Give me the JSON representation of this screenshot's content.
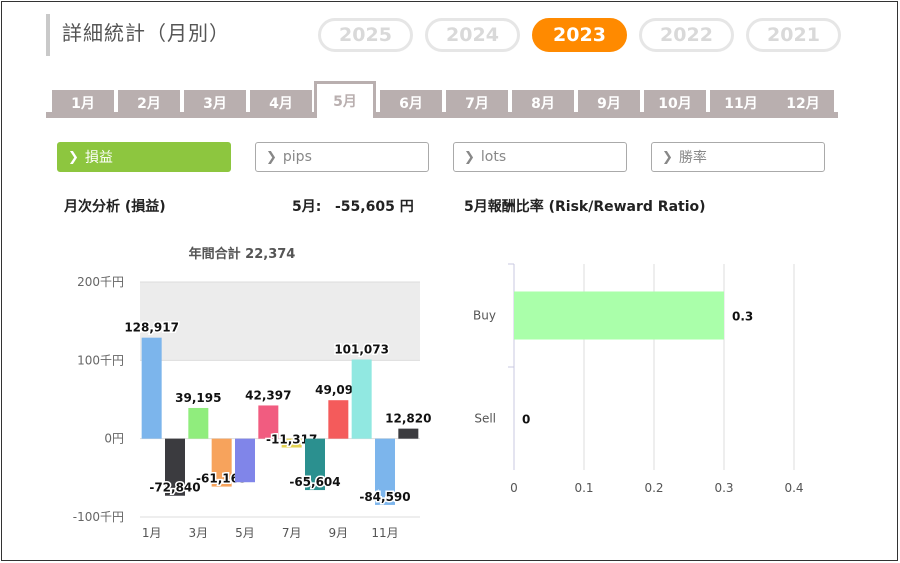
{
  "page": {
    "title": "詳細統計（月別）",
    "years": [
      {
        "label": "2025",
        "active": false
      },
      {
        "label": "2024",
        "active": false
      },
      {
        "label": "2023",
        "active": true
      },
      {
        "label": "2022",
        "active": false
      },
      {
        "label": "2021",
        "active": false
      }
    ],
    "months": [
      "1月",
      "2月",
      "3月",
      "4月",
      "5月",
      "6月",
      "7月",
      "8月",
      "9月",
      "10月",
      "11月",
      "12月"
    ],
    "active_month_index": 4,
    "metrics": [
      {
        "label": "損益",
        "active": true
      },
      {
        "label": "pips",
        "active": false
      },
      {
        "label": "lots",
        "active": false
      },
      {
        "label": "勝率",
        "active": false
      }
    ],
    "monthly_analysis_label": "月次分析 (損益)",
    "month_result_label": "5月:",
    "month_result_value": "-55,605 円",
    "ratio_title": "5月報酬比率 (Risk/Reward Ratio)",
    "annual_total_label": "年間合計 22,374",
    "colors": {
      "accent_orange": "#ff8a00",
      "accent_green": "#8dc63f",
      "tab_gray": "#b9afaf"
    }
  },
  "chart_data": [
    {
      "type": "bar",
      "title": "年間合計 22,374",
      "ylim": [
        -100000,
        200000
      ],
      "yticks": [
        {
          "value": 200000,
          "label": "200千円"
        },
        {
          "value": 100000,
          "label": "100千円"
        },
        {
          "value": 0,
          "label": "0円"
        },
        {
          "value": -100000,
          "label": "-100千円"
        }
      ],
      "xtick_labels": [
        "1月",
        "3月",
        "5月",
        "7月",
        "9月",
        "11月"
      ],
      "bars": [
        {
          "value": 128917,
          "label": "128,917",
          "color": "#7cb5ec"
        },
        {
          "value": -72840,
          "label": "-72,840",
          "color": "#3b3b3f"
        },
        {
          "value": 39195,
          "label": "39,195",
          "color": "#90ed7d"
        },
        {
          "value": -61169,
          "label": "-61,169",
          "color": "#f7a35c"
        },
        {
          "value": -55605,
          "label": "",
          "color": "#8085e9"
        },
        {
          "value": 42397,
          "label": "42,397",
          "color": "#f15c80"
        },
        {
          "value": -11317,
          "label": "-11,317",
          "color": "#e4d354"
        },
        {
          "value": -65604,
          "label": "-65,604",
          "color": "#2b908f"
        },
        {
          "value": 49097,
          "label": "49,097",
          "color": "#f45b5b"
        },
        {
          "value": 101073,
          "label": "101,073",
          "color": "#91e8e1"
        },
        {
          "value": -84590,
          "label": "-84,590",
          "color": "#7cb5ec"
        },
        {
          "value": 12820,
          "label": "12,820",
          "color": "#3b3b3f"
        }
      ]
    },
    {
      "type": "bar",
      "orientation": "horizontal",
      "categories": [
        "Buy",
        "Sell"
      ],
      "values": [
        0.3,
        0
      ],
      "value_labels": [
        "0.3",
        "0"
      ],
      "xlim": [
        0,
        0.4
      ],
      "xticks": [
        "0",
        "0.1",
        "0.2",
        "0.3",
        "0.4"
      ],
      "color": "#aaffaa"
    }
  ]
}
